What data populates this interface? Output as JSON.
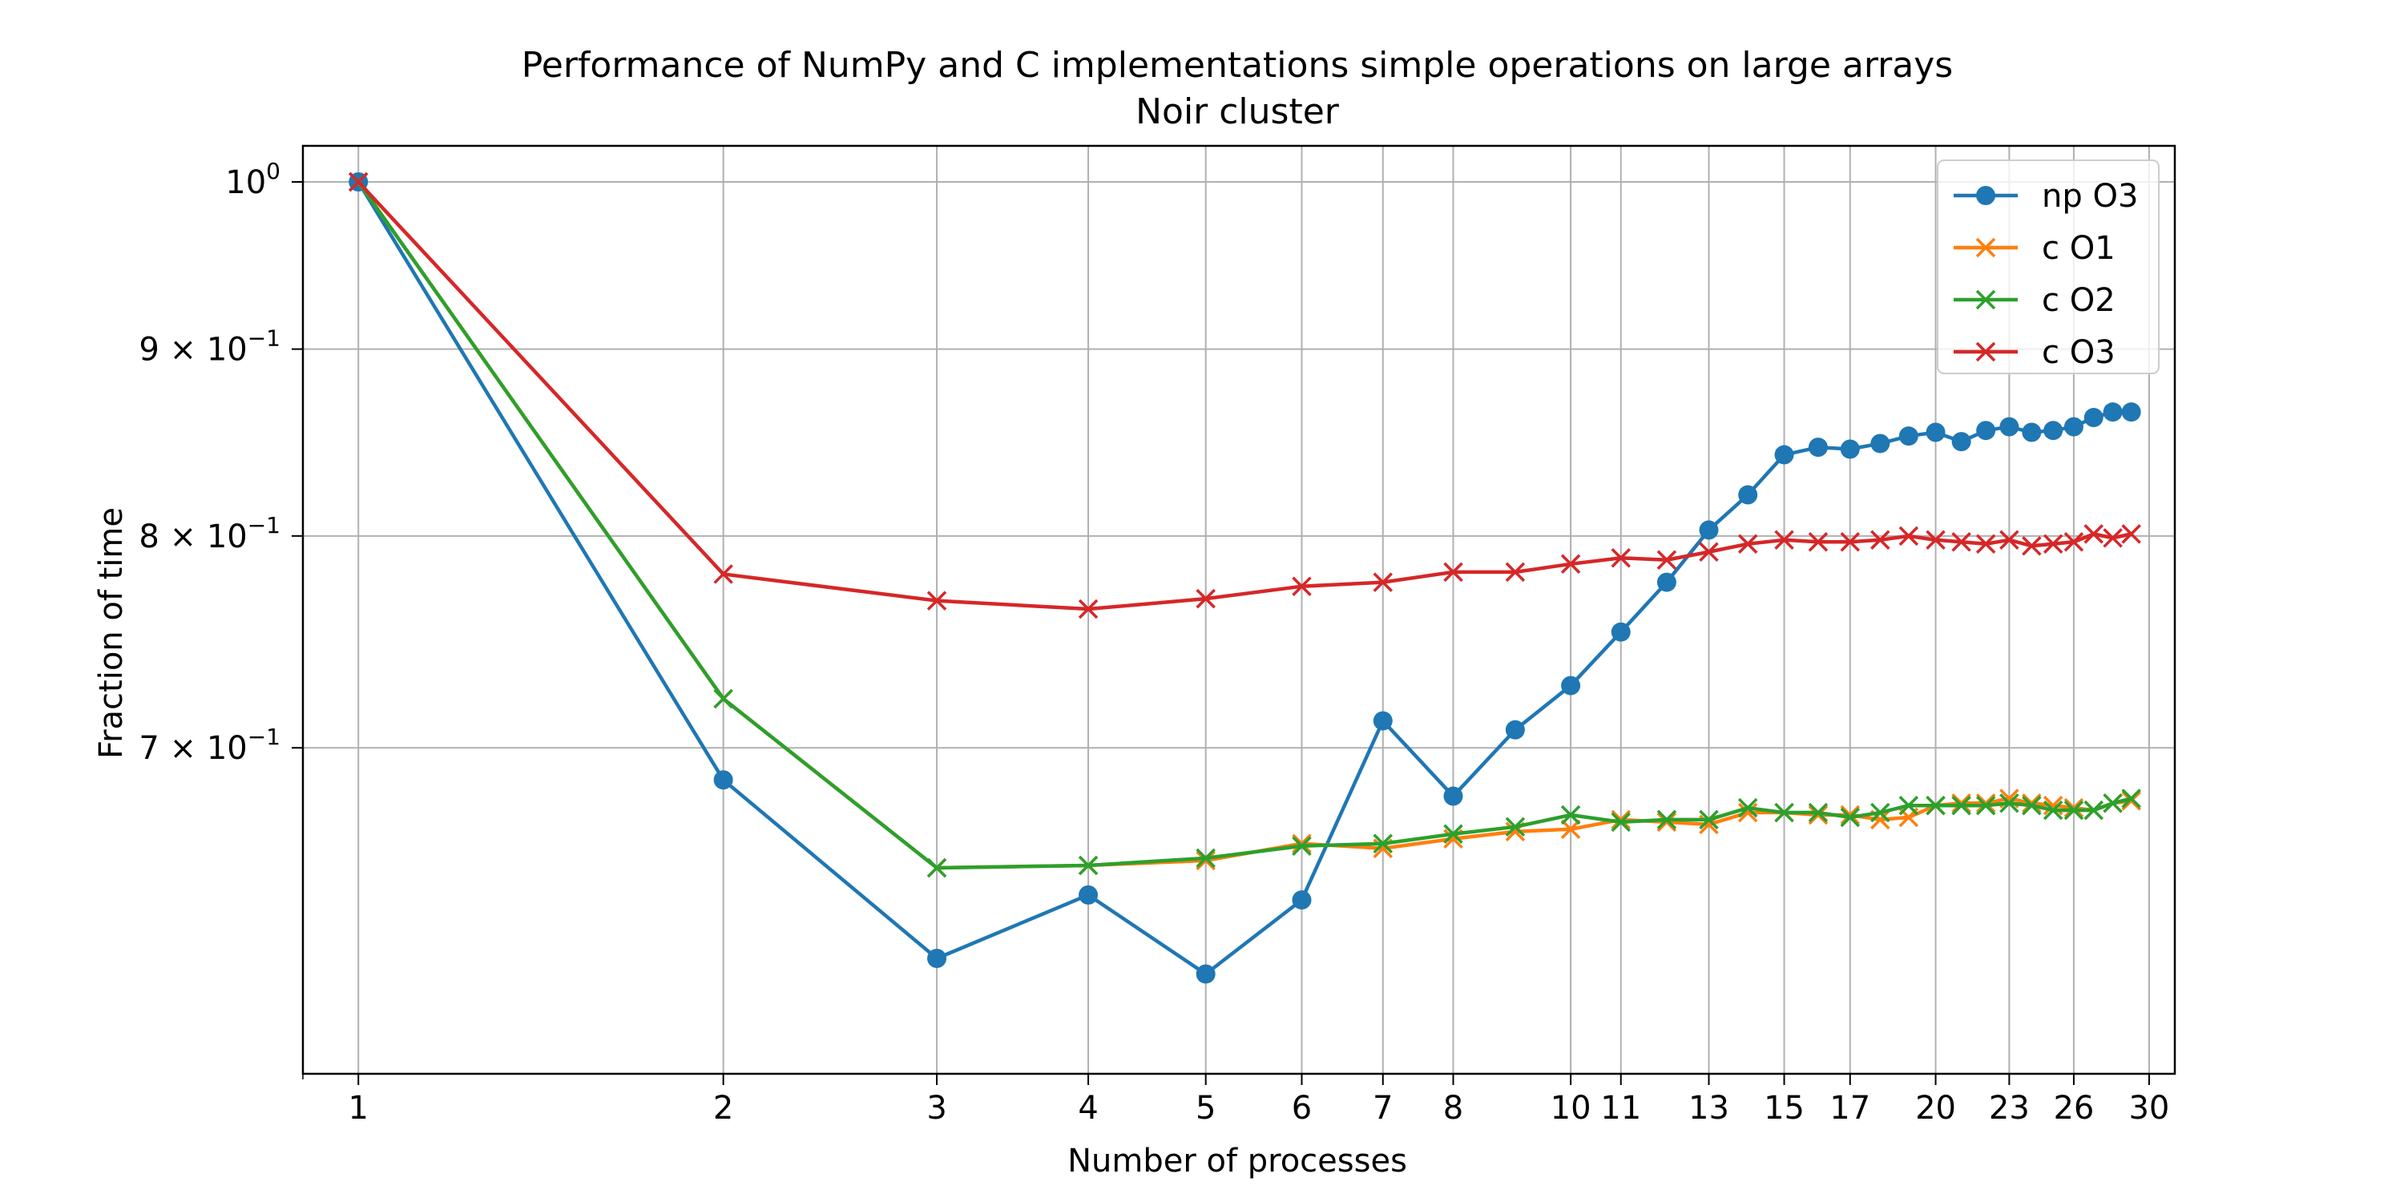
{
  "chart_data": {
    "type": "line",
    "title": "Performance of NumPy and C implementations simple operations on large arrays",
    "subtitle": "Noir cluster",
    "xlabel": "Number of processes",
    "ylabel": "Fraction of time",
    "x_scale": "log",
    "y_scale": "log",
    "xlim": [
      0.9,
      31.5
    ],
    "ylim": [
      0.57,
      1.023
    ],
    "grid": "x and y major",
    "legend_position": "top-right",
    "x_ticks": [
      "1",
      "2",
      "3",
      "4",
      "5",
      "6",
      "7",
      "8",
      "10",
      "11",
      "13",
      "15",
      "17",
      "20",
      "23",
      "26",
      "30"
    ],
    "y_ticks": [
      {
        "value": 1.0,
        "mantissa": "",
        "exp": "0"
      },
      {
        "value": 0.9,
        "mantissa": "9",
        "exp": "−1"
      },
      {
        "value": 0.8,
        "mantissa": "8",
        "exp": "−1"
      },
      {
        "value": 0.7,
        "mantissa": "7",
        "exp": "−1"
      }
    ],
    "x": [
      1,
      2,
      3,
      4,
      5,
      6,
      7,
      8,
      9,
      10,
      11,
      12,
      13,
      14,
      15,
      16,
      17,
      18,
      19,
      20,
      21,
      22,
      23,
      24,
      25,
      26,
      27,
      28,
      29
    ],
    "series": [
      {
        "name": "np O3",
        "color": "#1f77b4",
        "marker": "circle",
        "values": [
          1.0,
          0.686,
          0.613,
          0.638,
          0.607,
          0.636,
          0.712,
          0.679,
          0.708,
          0.728,
          0.753,
          0.777,
          0.803,
          0.821,
          0.842,
          0.846,
          0.845,
          0.848,
          0.852,
          0.854,
          0.849,
          0.855,
          0.857,
          0.854,
          0.855,
          0.857,
          0.862,
          0.865,
          0.865
        ]
      },
      {
        "name": "c O1",
        "color": "#ff7f0e",
        "marker": "x",
        "values": [
          1.0,
          0.722,
          0.649,
          0.65,
          0.652,
          0.659,
          0.657,
          0.661,
          0.664,
          0.665,
          0.669,
          0.668,
          0.667,
          0.672,
          0.672,
          0.671,
          0.671,
          0.669,
          0.67,
          0.675,
          0.676,
          0.676,
          0.678,
          0.676,
          0.675,
          0.674,
          0.673,
          0.676,
          0.677
        ]
      },
      {
        "name": "c O2",
        "color": "#2ca02c",
        "marker": "x",
        "values": [
          1.0,
          0.722,
          0.649,
          0.65,
          0.653,
          0.658,
          0.659,
          0.663,
          0.666,
          0.671,
          0.668,
          0.669,
          0.669,
          0.674,
          0.672,
          0.672,
          0.67,
          0.672,
          0.675,
          0.675,
          0.675,
          0.675,
          0.676,
          0.675,
          0.673,
          0.673,
          0.673,
          0.676,
          0.678
        ]
      },
      {
        "name": "c O3",
        "color": "#d62728",
        "marker": "x",
        "values": [
          1.0,
          0.781,
          0.768,
          0.764,
          0.769,
          0.775,
          0.777,
          0.782,
          0.782,
          0.786,
          0.789,
          0.788,
          0.792,
          0.796,
          0.798,
          0.797,
          0.797,
          0.798,
          0.8,
          0.798,
          0.797,
          0.796,
          0.798,
          0.795,
          0.796,
          0.797,
          0.801,
          0.799,
          0.801
        ]
      }
    ]
  }
}
